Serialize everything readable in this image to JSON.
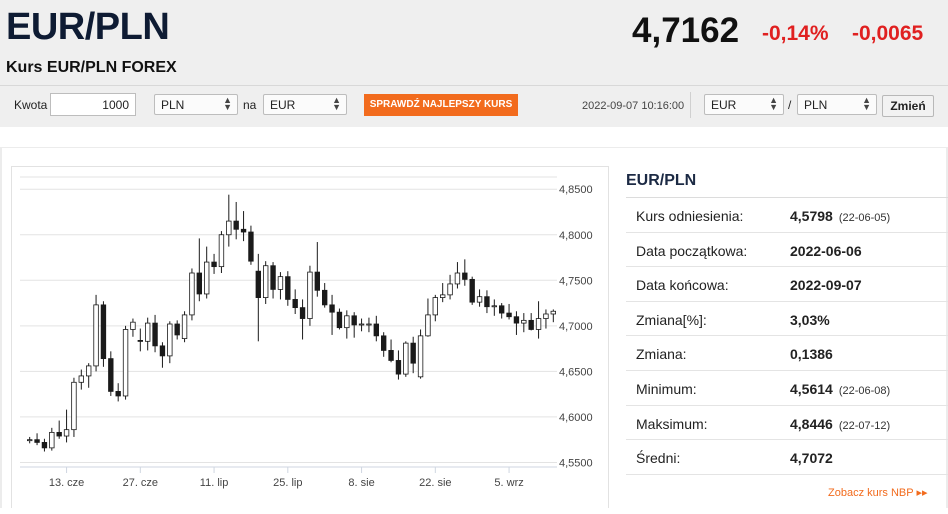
{
  "header": {
    "pair": "EUR/PLN",
    "subtitle": "Kurs EUR/PLN FOREX",
    "rate": "4,7162",
    "change_pct": "-0,14%",
    "change_abs": "-0,0065"
  },
  "converter": {
    "amount_label": "Kwota",
    "amount_value": "1000",
    "from_currency": "PLN",
    "to_label": "na",
    "to_currency": "EUR",
    "cta_label": "SPRAWDŹ NAJLEPSZY KURS",
    "timestamp": "2022-09-07 10:16:00",
    "pair_base": "EUR",
    "pair_sep": "/",
    "pair_quote": "PLN",
    "change_button": "Zmień"
  },
  "info": {
    "title": "EUR/PLN",
    "rows": [
      {
        "label": "Kurs odniesienia:",
        "value": "4,5798",
        "date": "(22-06-05)"
      },
      {
        "label": "Data początkowa:",
        "value": "2022-06-06",
        "date": ""
      },
      {
        "label": "Data końcowa:",
        "value": "2022-09-07",
        "date": ""
      },
      {
        "label": "Zmiana[%]:",
        "value": "3,03%",
        "date": ""
      },
      {
        "label": "Zmiana:",
        "value": "0,1386",
        "date": ""
      },
      {
        "label": "Minimum:",
        "value": "4,5614",
        "date": "(22-06-08)"
      },
      {
        "label": "Maksimum:",
        "value": "4,8446",
        "date": "(22-07-12)"
      },
      {
        "label": "Średni:",
        "value": "4,7072",
        "date": ""
      }
    ],
    "nbp_link": "Zobacz kurs NBP ▸▸"
  },
  "chart_data": {
    "type": "candlestick",
    "ylim": [
      4.545,
      4.87
    ],
    "yticks": [
      4.55,
      4.6,
      4.65,
      4.7,
      4.75,
      4.8,
      4.85
    ],
    "ytick_labels": [
      "4,5500",
      "4,6000",
      "4,6500",
      "4,7000",
      "4,7500",
      "4,8000",
      "4,8500"
    ],
    "xtick_labels": [
      "13. cze",
      "27. cze",
      "11. lip",
      "25. lip",
      "8. sie",
      "22. sie",
      "5. wrz"
    ],
    "xtick_index": [
      5,
      15,
      25,
      35,
      45,
      55,
      65
    ],
    "grid": true,
    "up_color": "#ffffff",
    "down_color": "#1a1a1a",
    "candles": [
      {
        "o": 4.574,
        "h": 4.578,
        "l": 4.571,
        "c": 4.575
      },
      {
        "o": 4.575,
        "h": 4.582,
        "l": 4.569,
        "c": 4.572
      },
      {
        "o": 4.572,
        "h": 4.576,
        "l": 4.562,
        "c": 4.566
      },
      {
        "o": 4.566,
        "h": 4.588,
        "l": 4.563,
        "c": 4.583
      },
      {
        "o": 4.583,
        "h": 4.596,
        "l": 4.576,
        "c": 4.579
      },
      {
        "o": 4.579,
        "h": 4.608,
        "l": 4.572,
        "c": 4.586
      },
      {
        "o": 4.586,
        "h": 4.643,
        "l": 4.578,
        "c": 4.638
      },
      {
        "o": 4.638,
        "h": 4.652,
        "l": 4.63,
        "c": 4.645
      },
      {
        "o": 4.645,
        "h": 4.659,
        "l": 4.632,
        "c": 4.656
      },
      {
        "o": 4.656,
        "h": 4.734,
        "l": 4.65,
        "c": 4.723
      },
      {
        "o": 4.723,
        "h": 4.727,
        "l": 4.655,
        "c": 4.664
      },
      {
        "o": 4.664,
        "h": 4.672,
        "l": 4.623,
        "c": 4.628
      },
      {
        "o": 4.628,
        "h": 4.637,
        "l": 4.617,
        "c": 4.623
      },
      {
        "o": 4.623,
        "h": 4.7,
        "l": 4.619,
        "c": 4.696
      },
      {
        "o": 4.696,
        "h": 4.708,
        "l": 4.688,
        "c": 4.704
      },
      {
        "o": 4.684,
        "h": 4.697,
        "l": 4.672,
        "c": 4.683
      },
      {
        "o": 4.683,
        "h": 4.709,
        "l": 4.673,
        "c": 4.703
      },
      {
        "o": 4.703,
        "h": 4.712,
        "l": 4.671,
        "c": 4.678
      },
      {
        "o": 4.678,
        "h": 4.682,
        "l": 4.654,
        "c": 4.667
      },
      {
        "o": 4.667,
        "h": 4.705,
        "l": 4.659,
        "c": 4.702
      },
      {
        "o": 4.702,
        "h": 4.706,
        "l": 4.685,
        "c": 4.69
      },
      {
        "o": 4.686,
        "h": 4.716,
        "l": 4.682,
        "c": 4.712
      },
      {
        "o": 4.712,
        "h": 4.763,
        "l": 4.706,
        "c": 4.758
      },
      {
        "o": 4.758,
        "h": 4.796,
        "l": 4.727,
        "c": 4.735
      },
      {
        "o": 4.735,
        "h": 4.787,
        "l": 4.73,
        "c": 4.77
      },
      {
        "o": 4.77,
        "h": 4.779,
        "l": 4.757,
        "c": 4.765
      },
      {
        "o": 4.765,
        "h": 4.804,
        "l": 4.758,
        "c": 4.8
      },
      {
        "o": 4.8,
        "h": 4.844,
        "l": 4.787,
        "c": 4.815
      },
      {
        "o": 4.815,
        "h": 4.836,
        "l": 4.795,
        "c": 4.806
      },
      {
        "o": 4.806,
        "h": 4.826,
        "l": 4.793,
        "c": 4.803
      },
      {
        "o": 4.803,
        "h": 4.81,
        "l": 4.767,
        "c": 4.771
      },
      {
        "o": 4.76,
        "h": 4.779,
        "l": 4.683,
        "c": 4.731
      },
      {
        "o": 4.731,
        "h": 4.771,
        "l": 4.724,
        "c": 4.766
      },
      {
        "o": 4.766,
        "h": 4.77,
        "l": 4.73,
        "c": 4.74
      },
      {
        "o": 4.74,
        "h": 4.759,
        "l": 4.729,
        "c": 4.754
      },
      {
        "o": 4.754,
        "h": 4.76,
        "l": 4.722,
        "c": 4.729
      },
      {
        "o": 4.729,
        "h": 4.74,
        "l": 4.713,
        "c": 4.72
      },
      {
        "o": 4.72,
        "h": 4.729,
        "l": 4.685,
        "c": 4.708
      },
      {
        "o": 4.708,
        "h": 4.766,
        "l": 4.7,
        "c": 4.759
      },
      {
        "o": 4.759,
        "h": 4.792,
        "l": 4.732,
        "c": 4.739
      },
      {
        "o": 4.739,
        "h": 4.747,
        "l": 4.72,
        "c": 4.723
      },
      {
        "o": 4.723,
        "h": 4.734,
        "l": 4.69,
        "c": 4.715
      },
      {
        "o": 4.715,
        "h": 4.719,
        "l": 4.696,
        "c": 4.698
      },
      {
        "o": 4.698,
        "h": 4.717,
        "l": 4.686,
        "c": 4.711
      },
      {
        "o": 4.711,
        "h": 4.715,
        "l": 4.687,
        "c": 4.701
      },
      {
        "o": 4.701,
        "h": 4.708,
        "l": 4.694,
        "c": 4.702
      },
      {
        "o": 4.702,
        "h": 4.709,
        "l": 4.693,
        "c": 4.702
      },
      {
        "o": 4.702,
        "h": 4.711,
        "l": 4.683,
        "c": 4.689
      },
      {
        "o": 4.689,
        "h": 4.693,
        "l": 4.666,
        "c": 4.673
      },
      {
        "o": 4.673,
        "h": 4.685,
        "l": 4.66,
        "c": 4.662
      },
      {
        "o": 4.662,
        "h": 4.673,
        "l": 4.641,
        "c": 4.647
      },
      {
        "o": 4.647,
        "h": 4.683,
        "l": 4.644,
        "c": 4.681
      },
      {
        "o": 4.681,
        "h": 4.688,
        "l": 4.648,
        "c": 4.659
      },
      {
        "o": 4.644,
        "h": 4.696,
        "l": 4.642,
        "c": 4.689
      },
      {
        "o": 4.689,
        "h": 4.73,
        "l": 4.688,
        "c": 4.712
      },
      {
        "o": 4.712,
        "h": 4.734,
        "l": 4.705,
        "c": 4.731
      },
      {
        "o": 4.731,
        "h": 4.747,
        "l": 4.726,
        "c": 4.734
      },
      {
        "o": 4.734,
        "h": 4.756,
        "l": 4.729,
        "c": 4.746
      },
      {
        "o": 4.746,
        "h": 4.77,
        "l": 4.741,
        "c": 4.758
      },
      {
        "o": 4.758,
        "h": 4.773,
        "l": 4.744,
        "c": 4.751
      },
      {
        "o": 4.751,
        "h": 4.754,
        "l": 4.723,
        "c": 4.726
      },
      {
        "o": 4.726,
        "h": 4.74,
        "l": 4.721,
        "c": 4.732
      },
      {
        "o": 4.732,
        "h": 4.739,
        "l": 4.714,
        "c": 4.721
      },
      {
        "o": 4.721,
        "h": 4.729,
        "l": 4.711,
        "c": 4.722
      },
      {
        "o": 4.722,
        "h": 4.725,
        "l": 4.708,
        "c": 4.714
      },
      {
        "o": 4.714,
        "h": 4.724,
        "l": 4.707,
        "c": 4.71
      },
      {
        "o": 4.71,
        "h": 4.716,
        "l": 4.69,
        "c": 4.703
      },
      {
        "o": 4.703,
        "h": 4.714,
        "l": 4.693,
        "c": 4.706
      },
      {
        "o": 4.706,
        "h": 4.714,
        "l": 4.695,
        "c": 4.696
      },
      {
        "o": 4.696,
        "h": 4.727,
        "l": 4.686,
        "c": 4.708
      },
      {
        "o": 4.708,
        "h": 4.718,
        "l": 4.697,
        "c": 4.713
      },
      {
        "o": 4.713,
        "h": 4.718,
        "l": 4.704,
        "c": 4.716
      }
    ]
  }
}
